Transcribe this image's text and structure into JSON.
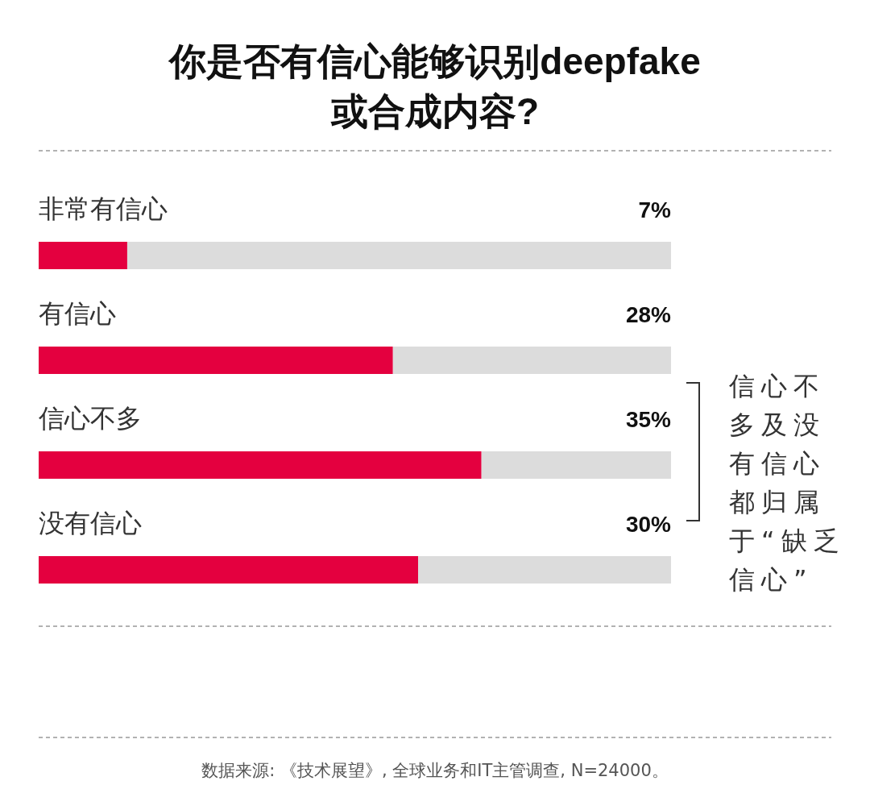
{
  "chart_data": {
    "type": "bar",
    "orientation": "horizontal",
    "title": "你是否有信心能够识别deepfake或合成内容?",
    "categories": [
      "非常有信心",
      "有信心",
      "信心不多",
      "没有信心"
    ],
    "values": [
      7,
      28,
      35,
      30
    ],
    "value_labels": [
      "7%",
      "28%",
      "35%",
      "30%"
    ],
    "color": "#e4003f",
    "xlim": [
      0,
      50
    ],
    "tick_labels": "y",
    "annotations": [
      "信心不多及没有信心都归属于“缺乏信心”",
      "数据来源: 《技术展望》, 全球业务和IT主管调查, N=24000。"
    ]
  }
}
